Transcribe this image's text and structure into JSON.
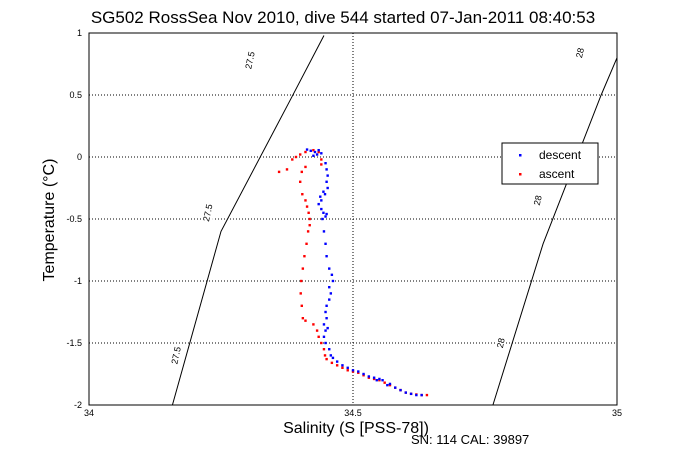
{
  "chart_data": {
    "type": "scatter",
    "title": "SG502 RossSea Nov 2010, dive 544 started 07-Jan-2011 08:40:53",
    "xlabel": "Salinity (S [PSS-78])",
    "ylabel": "Temperature (°C)",
    "xlim": [
      34,
      35
    ],
    "ylim": [
      -2,
      1
    ],
    "xticks": [
      "34",
      "34.5",
      "35"
    ],
    "yticks": [
      "-2",
      "-1.5",
      "-1",
      "-0.5",
      "0",
      "0.5",
      "1"
    ],
    "grid": true,
    "legend_position": "right",
    "footer": "SN: 114  CAL: 39897",
    "contours": [
      {
        "name": "27.5",
        "line": [
          [
            34.158,
            -2.0
          ],
          [
            34.25,
            -0.6
          ],
          [
            34.38,
            0.45
          ],
          [
            34.445,
            0.98
          ]
        ],
        "labels": [
          [
            34.165,
            -1.6
          ],
          [
            34.225,
            -0.45
          ],
          [
            34.305,
            0.78
          ]
        ]
      },
      {
        "name": "28",
        "line": [
          [
            34.765,
            -2.0
          ],
          [
            34.86,
            -0.7
          ],
          [
            34.97,
            0.5
          ],
          [
            35.0,
            0.8
          ]
        ],
        "labels": [
          [
            34.78,
            -1.5
          ],
          [
            34.85,
            -0.35
          ],
          [
            34.93,
            0.84
          ]
        ]
      }
    ],
    "series": [
      {
        "name": "descent",
        "color": "#0000ff",
        "points": [
          [
            34.413,
            0.06
          ],
          [
            34.42,
            0.05
          ],
          [
            34.428,
            0.04
          ],
          [
            34.435,
            0.055
          ],
          [
            34.44,
            0.03
          ],
          [
            34.432,
            0.02
          ],
          [
            34.425,
            0.01
          ],
          [
            34.448,
            -0.05
          ],
          [
            34.45,
            -0.1
          ],
          [
            34.452,
            -0.15
          ],
          [
            34.45,
            -0.2
          ],
          [
            34.452,
            -0.25
          ],
          [
            34.447,
            -0.3
          ],
          [
            34.444,
            -0.28
          ],
          [
            34.438,
            -0.32
          ],
          [
            34.44,
            -0.35
          ],
          [
            34.435,
            -0.38
          ],
          [
            34.44,
            -0.42
          ],
          [
            34.444,
            -0.45
          ],
          [
            34.448,
            -0.48
          ],
          [
            34.45,
            -0.46
          ],
          [
            34.442,
            -0.5
          ],
          [
            34.445,
            -0.6
          ],
          [
            34.448,
            -0.7
          ],
          [
            34.45,
            -0.8
          ],
          [
            34.455,
            -0.9
          ],
          [
            34.46,
            -0.95
          ],
          [
            34.462,
            -1.0
          ],
          [
            34.455,
            -1.05
          ],
          [
            34.458,
            -1.1
          ],
          [
            34.455,
            -1.15
          ],
          [
            34.45,
            -1.2
          ],
          [
            34.448,
            -1.25
          ],
          [
            34.45,
            -1.3
          ],
          [
            34.445,
            -1.35
          ],
          [
            34.452,
            -1.38
          ],
          [
            34.448,
            -1.4
          ],
          [
            34.445,
            -1.45
          ],
          [
            34.448,
            -1.5
          ],
          [
            34.455,
            -1.55
          ],
          [
            34.458,
            -1.6
          ],
          [
            34.462,
            -1.62
          ],
          [
            34.47,
            -1.65
          ],
          [
            34.48,
            -1.68
          ],
          [
            34.49,
            -1.7
          ],
          [
            34.5,
            -1.72
          ],
          [
            34.51,
            -1.73
          ],
          [
            34.52,
            -1.75
          ],
          [
            34.53,
            -1.77
          ],
          [
            34.54,
            -1.78
          ],
          [
            34.545,
            -1.8
          ],
          [
            34.55,
            -1.79
          ],
          [
            34.556,
            -1.8
          ],
          [
            34.565,
            -1.84
          ],
          [
            34.57,
            -1.83
          ],
          [
            34.58,
            -1.86
          ],
          [
            34.59,
            -1.88
          ],
          [
            34.6,
            -1.9
          ],
          [
            34.61,
            -1.91
          ],
          [
            34.62,
            -1.92
          ],
          [
            34.63,
            -1.92
          ]
        ]
      },
      {
        "name": "ascent",
        "color": "#ff0000",
        "points": [
          [
            34.36,
            -0.12
          ],
          [
            34.375,
            -0.1
          ],
          [
            34.385,
            -0.02
          ],
          [
            34.392,
            0.0
          ],
          [
            34.4,
            0.02
          ],
          [
            34.41,
            0.04
          ],
          [
            34.425,
            0.055
          ],
          [
            34.435,
            0.04
          ],
          [
            34.44,
            -0.02
          ],
          [
            34.44,
            -0.06
          ],
          [
            34.41,
            -0.08
          ],
          [
            34.403,
            -0.12
          ],
          [
            34.4,
            -0.2
          ],
          [
            34.404,
            -0.3
          ],
          [
            34.41,
            -0.35
          ],
          [
            34.413,
            -0.4
          ],
          [
            34.416,
            -0.45
          ],
          [
            34.418,
            -0.5
          ],
          [
            34.418,
            -0.55
          ],
          [
            34.415,
            -0.6
          ],
          [
            34.412,
            -0.7
          ],
          [
            34.408,
            -0.8
          ],
          [
            34.405,
            -0.9
          ],
          [
            34.402,
            -1.0
          ],
          [
            34.401,
            -1.1
          ],
          [
            34.403,
            -1.2
          ],
          [
            34.405,
            -1.3
          ],
          [
            34.41,
            -1.32
          ],
          [
            34.425,
            -1.35
          ],
          [
            34.432,
            -1.4
          ],
          [
            34.435,
            -1.45
          ],
          [
            34.44,
            -1.5
          ],
          [
            34.445,
            -1.55
          ],
          [
            34.447,
            -1.6
          ],
          [
            34.45,
            -1.63
          ],
          [
            34.46,
            -1.66
          ],
          [
            34.47,
            -1.68
          ],
          [
            34.48,
            -1.7
          ],
          [
            34.49,
            -1.72
          ],
          [
            34.5,
            -1.73
          ],
          [
            34.51,
            -1.74
          ],
          [
            34.52,
            -1.76
          ],
          [
            34.53,
            -1.78
          ],
          [
            34.54,
            -1.79
          ],
          [
            34.55,
            -1.8
          ],
          [
            34.56,
            -1.82
          ],
          [
            34.57,
            -1.84
          ],
          [
            34.58,
            -1.86
          ],
          [
            34.59,
            -1.88
          ],
          [
            34.6,
            -1.9
          ],
          [
            34.61,
            -1.91
          ],
          [
            34.62,
            -1.915
          ],
          [
            34.63,
            -1.92
          ],
          [
            34.64,
            -1.92
          ]
        ]
      }
    ]
  }
}
